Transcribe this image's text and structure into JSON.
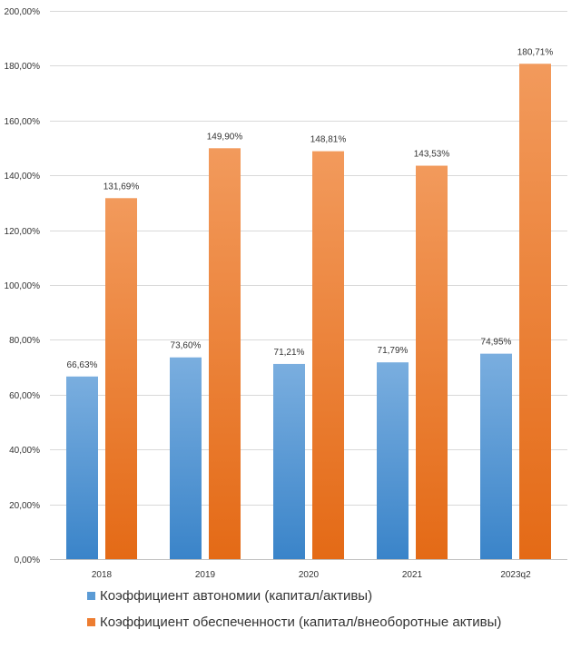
{
  "chart_data": {
    "type": "bar",
    "title": "",
    "xlabel": "",
    "ylabel": "",
    "categories": [
      "2018",
      "2019",
      "2020",
      "2021",
      "2023q2"
    ],
    "ylim": [
      0,
      200
    ],
    "yticks": [
      0,
      20,
      40,
      60,
      80,
      100,
      120,
      140,
      160,
      180,
      200
    ],
    "ytick_labels": [
      "0,00%",
      "20,00%",
      "40,00%",
      "60,00%",
      "80,00%",
      "100,00%",
      "120,00%",
      "140,00%",
      "160,00%",
      "180,00%",
      "200,00%"
    ],
    "grid": true,
    "legend_position": "bottom",
    "series": [
      {
        "name": "Коэффициент автономии (капитал/активы)",
        "color": "#5B9BD5",
        "values": [
          66.63,
          73.6,
          71.21,
          71.79,
          74.95
        ],
        "labels": [
          "66,63%",
          "73,60%",
          "71,21%",
          "71,79%",
          "74,95%"
        ]
      },
      {
        "name": "Коэффициент обеспеченности (капитал/внеоборотные активы)",
        "color": "#ED7D31",
        "values": [
          131.69,
          149.9,
          148.81,
          143.53,
          180.71
        ],
        "labels": [
          "131,69%",
          "149,90%",
          "148,81%",
          "143,53%",
          "180,71%"
        ]
      }
    ]
  }
}
